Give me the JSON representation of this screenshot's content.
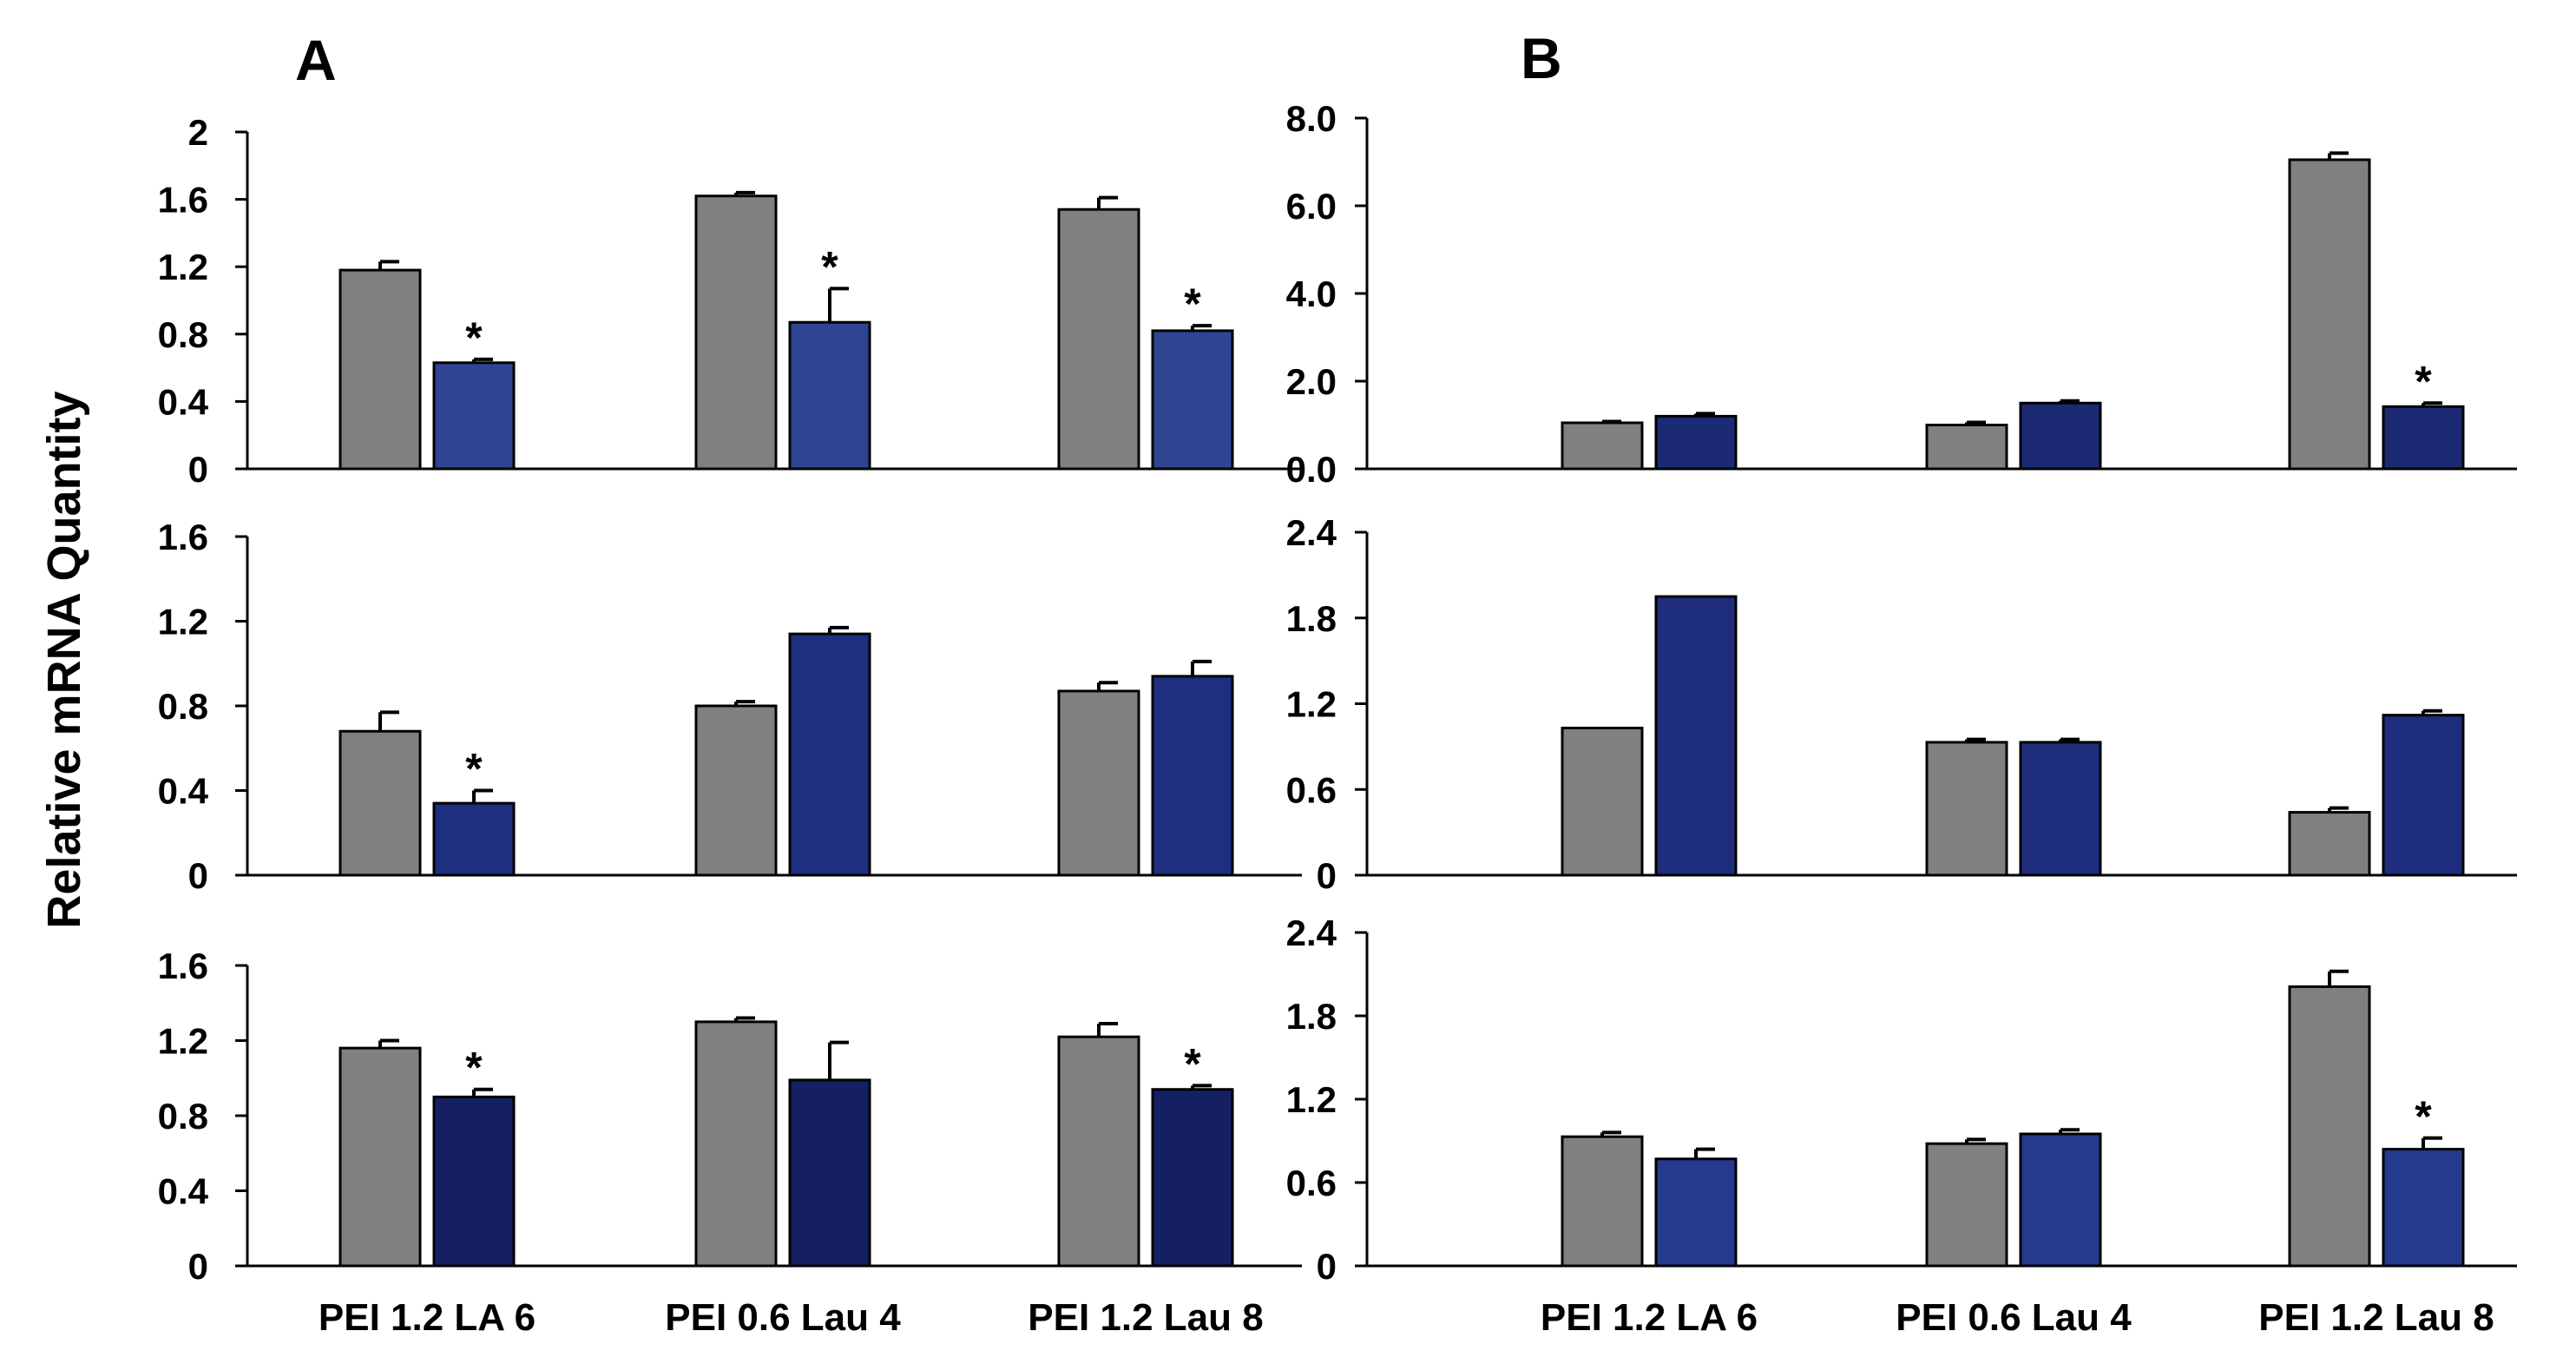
{
  "figure": {
    "panel_labels": [
      "A",
      "B"
    ],
    "ylabel": "Relative mRNA Quantity",
    "categories": [
      "PEI 1.2  LA 6",
      "PEI 0.6  Lau 4",
      "PEI 1.2  Lau 8"
    ],
    "colors": {
      "gray": "#808080",
      "blue_a_top": "#2f4592",
      "blue_a_mid": "#1f2f7f",
      "blue_a_bot": "#152063",
      "blue_b_top": "#1b2a72",
      "blue_b_mid": "#1e2e7c",
      "blue_b_bot": "#243a8e"
    }
  },
  "chart_data": [
    {
      "type": "bar",
      "panel": "A",
      "row": 1,
      "categories": [
        "PEI 1.2  LA 6",
        "PEI 0.6  Lau 4",
        "PEI 1.2  Lau 8"
      ],
      "ylim": [
        0,
        2
      ],
      "yticks": [
        "0",
        "0.4",
        "0.8",
        "1.2",
        "1.6",
        "2"
      ],
      "series": [
        {
          "values": [
            1.18,
            1.62,
            1.54
          ],
          "errors": [
            0.05,
            0.02,
            0.07
          ],
          "color": "#808080"
        },
        {
          "values": [
            0.63,
            0.87,
            0.82
          ],
          "errors": [
            0.02,
            0.2,
            0.03
          ],
          "color": "#2f4592"
        }
      ],
      "significance": [
        {
          "series": 1,
          "category": 0,
          "mark": "*"
        },
        {
          "series": 1,
          "category": 1,
          "mark": "*"
        },
        {
          "series": 1,
          "category": 2,
          "mark": "*"
        }
      ]
    },
    {
      "type": "bar",
      "panel": "A",
      "row": 2,
      "categories": [
        "PEI 1.2  LA 6",
        "PEI 0.6  Lau 4",
        "PEI 1.2  Lau 8"
      ],
      "ylim": [
        0,
        1.6
      ],
      "yticks": [
        "0",
        "0.4",
        "0.8",
        "1.2",
        "1.6"
      ],
      "series": [
        {
          "values": [
            0.68,
            0.8,
            0.87
          ],
          "errors": [
            0.09,
            0.02,
            0.04
          ],
          "color": "#808080"
        },
        {
          "values": [
            0.34,
            1.14,
            0.94
          ],
          "errors": [
            0.06,
            0.03,
            0.07
          ],
          "color": "#1f2f7f"
        }
      ],
      "significance": [
        {
          "series": 1,
          "category": 0,
          "mark": "*"
        }
      ]
    },
    {
      "type": "bar",
      "panel": "A",
      "row": 3,
      "categories": [
        "PEI 1.2  LA 6",
        "PEI 0.6  Lau 4",
        "PEI 1.2  Lau 8"
      ],
      "ylim": [
        0,
        1.6
      ],
      "yticks": [
        "0",
        "0.4",
        "0.8",
        "1.2",
        "1.6"
      ],
      "series": [
        {
          "values": [
            1.16,
            1.3,
            1.22
          ],
          "errors": [
            0.04,
            0.02,
            0.07
          ],
          "color": "#808080"
        },
        {
          "values": [
            0.9,
            0.99,
            0.94
          ],
          "errors": [
            0.04,
            0.2,
            0.02
          ],
          "color": "#152063"
        }
      ],
      "significance": [
        {
          "series": 1,
          "category": 0,
          "mark": "*"
        },
        {
          "series": 1,
          "category": 2,
          "mark": "*"
        }
      ]
    },
    {
      "type": "bar",
      "panel": "B",
      "row": 1,
      "categories": [
        "PEI 1.2  LA 6",
        "PEI 0.6  Lau 4",
        "PEI 1.2  Lau 8"
      ],
      "ylim": [
        0,
        8
      ],
      "yticks": [
        "0.0",
        "2.0",
        "4.0",
        "6.0",
        "8.0"
      ],
      "series": [
        {
          "values": [
            1.05,
            1.0,
            7.05
          ],
          "errors": [
            0.03,
            0.06,
            0.15
          ],
          "color": "#808080"
        },
        {
          "values": [
            1.2,
            1.5,
            1.42
          ],
          "errors": [
            0.06,
            0.05,
            0.08
          ],
          "color": "#1b2a72"
        }
      ],
      "significance": [
        {
          "series": 1,
          "category": 2,
          "mark": "*"
        }
      ]
    },
    {
      "type": "bar",
      "panel": "B",
      "row": 2,
      "categories": [
        "PEI 1.2  LA 6",
        "PEI 0.6  Lau 4",
        "PEI 1.2  Lau 8"
      ],
      "ylim": [
        0,
        2.4
      ],
      "yticks": [
        "0",
        "0.6",
        "1.2",
        "1.8",
        "2.4"
      ],
      "series": [
        {
          "values": [
            1.03,
            0.93,
            0.44
          ],
          "errors": [
            0,
            0.02,
            0.03
          ],
          "color": "#808080"
        },
        {
          "values": [
            1.95,
            0.93,
            1.12
          ],
          "errors": [
            0,
            0.02,
            0.03
          ],
          "color": "#1e2e7c"
        }
      ],
      "significance": []
    },
    {
      "type": "bar",
      "panel": "B",
      "row": 3,
      "categories": [
        "PEI 1.2  LA 6",
        "PEI 0.6  Lau 4",
        "PEI 1.2  Lau 8"
      ],
      "ylim": [
        0,
        2.4
      ],
      "yticks": [
        "0",
        "0.6",
        "1.2",
        "1.8",
        "2.4"
      ],
      "series": [
        {
          "values": [
            0.93,
            0.88,
            2.01
          ],
          "errors": [
            0.03,
            0.03,
            0.11
          ],
          "color": "#808080"
        },
        {
          "values": [
            0.77,
            0.95,
            0.84
          ],
          "errors": [
            0.07,
            0.03,
            0.08
          ],
          "color": "#243a8e"
        }
      ],
      "significance": [
        {
          "series": 1,
          "category": 2,
          "mark": "*"
        }
      ]
    }
  ]
}
